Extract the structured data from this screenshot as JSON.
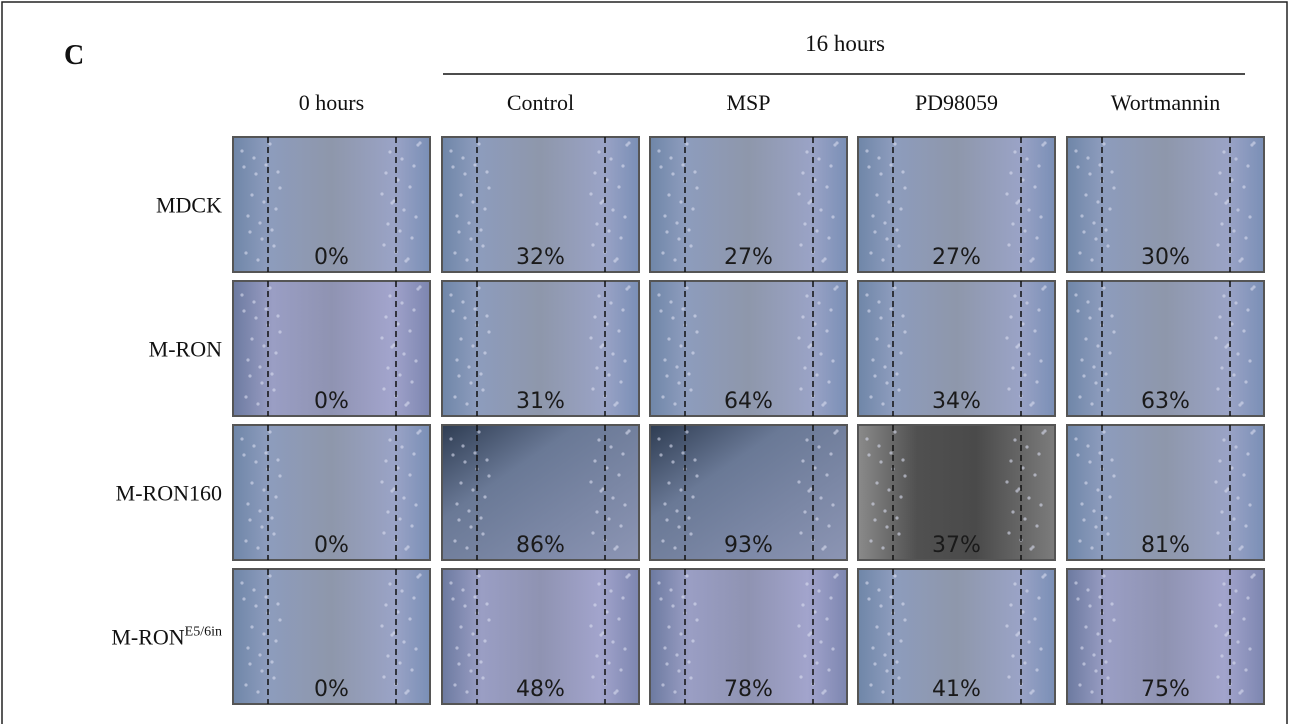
{
  "figure": {
    "panel_label": "C",
    "group_header": "16 hours",
    "columns": [
      "0 hours",
      "Control",
      "MSP",
      "PD98059",
      "Wortmannin"
    ],
    "rows": [
      {
        "label": "MDCK",
        "cells": [
          "0%",
          "32%",
          "27%",
          "27%",
          "30%"
        ]
      },
      {
        "label": "M-RON",
        "cells": [
          "0%",
          "31%",
          "64%",
          "34%",
          "63%"
        ]
      },
      {
        "label": "M-RON160",
        "cells": [
          "0%",
          "86%",
          "93%",
          "37%",
          "81%"
        ]
      },
      {
        "label": "M-RON",
        "label_sup": "E5/6in",
        "cells": [
          "0%",
          "48%",
          "78%",
          "41%",
          "75%"
        ]
      }
    ]
  }
}
